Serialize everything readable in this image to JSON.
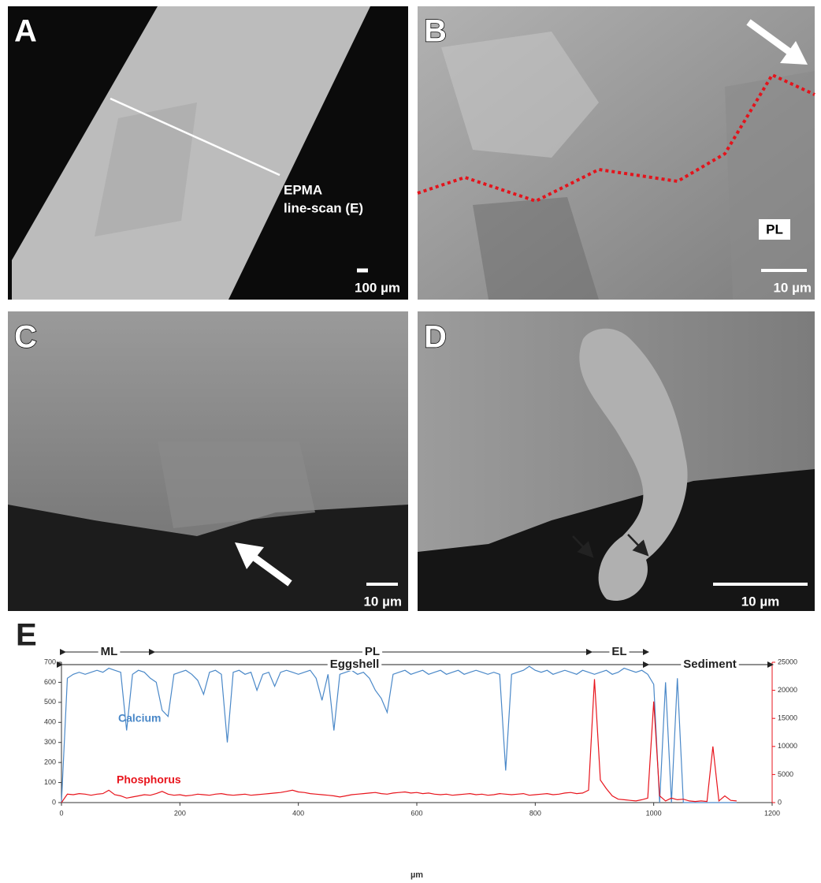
{
  "panels": [
    {
      "label": "A",
      "scale_bar": "100 µm",
      "annotation": [
        "EPMA",
        "line-scan (E)"
      ]
    },
    {
      "label": "B",
      "scale_bar": "10 µm",
      "annotation": [
        "PL"
      ]
    },
    {
      "label": "C",
      "scale_bar": "10 µm"
    },
    {
      "label": "D",
      "scale_bar": "10 µm"
    }
  ],
  "chart_data": {
    "type": "line",
    "label": "E",
    "x_label": "µm",
    "annotations": [
      "ML",
      "PL",
      "EL",
      "Eggshell",
      "Sediment"
    ],
    "x": [
      0,
      10,
      20,
      30,
      40,
      50,
      60,
      70,
      80,
      90,
      100,
      110,
      120,
      130,
      140,
      150,
      160,
      170,
      180,
      190,
      200,
      210,
      220,
      230,
      240,
      250,
      260,
      270,
      280,
      290,
      300,
      310,
      320,
      330,
      340,
      350,
      360,
      370,
      380,
      390,
      400,
      410,
      420,
      430,
      440,
      450,
      460,
      470,
      480,
      490,
      500,
      510,
      520,
      530,
      540,
      550,
      560,
      570,
      580,
      590,
      600,
      610,
      620,
      630,
      640,
      650,
      660,
      670,
      680,
      690,
      700,
      710,
      720,
      730,
      740,
      750,
      760,
      770,
      780,
      790,
      800,
      810,
      820,
      830,
      840,
      850,
      860,
      870,
      880,
      890,
      900,
      910,
      920,
      930,
      940,
      950,
      960,
      970,
      980,
      990,
      1000,
      1010,
      1020,
      1030,
      1040,
      1050,
      1060,
      1070,
      1080,
      1090,
      1100,
      1110,
      1120,
      1130,
      1140
    ],
    "series": [
      {
        "name": "Calcium",
        "color": "#4a88c8",
        "values": [
          0,
          620,
          640,
          650,
          640,
          650,
          660,
          650,
          670,
          660,
          650,
          360,
          640,
          660,
          650,
          620,
          600,
          460,
          430,
          640,
          650,
          660,
          640,
          610,
          540,
          650,
          660,
          640,
          300,
          650,
          660,
          640,
          650,
          560,
          640,
          650,
          580,
          650,
          660,
          650,
          640,
          650,
          660,
          620,
          510,
          640,
          360,
          640,
          650,
          660,
          640,
          650,
          620,
          560,
          520,
          450,
          640,
          650,
          660,
          640,
          650,
          660,
          640,
          650,
          660,
          640,
          650,
          660,
          640,
          650,
          660,
          650,
          640,
          650,
          640,
          160,
          640,
          650,
          660,
          680,
          660,
          650,
          660,
          640,
          650,
          660,
          650,
          640,
          660,
          650,
          640,
          650,
          660,
          640,
          650,
          670,
          660,
          650,
          660,
          640,
          590,
          0,
          600,
          0,
          620,
          0,
          0,
          0,
          0,
          0,
          0,
          0,
          0,
          0,
          0
        ]
      },
      {
        "name": "Phosphorus",
        "color": "#e8141c",
        "axis": "y2",
        "values": [
          0,
          1500,
          1400,
          1600,
          1500,
          1300,
          1500,
          1600,
          2200,
          1400,
          1200,
          800,
          1000,
          1200,
          1400,
          1300,
          1600,
          2000,
          1500,
          1300,
          1400,
          1200,
          1300,
          1500,
          1400,
          1300,
          1500,
          1600,
          1400,
          1300,
          1400,
          1500,
          1300,
          1400,
          1500,
          1600,
          1700,
          1800,
          2000,
          2200,
          1900,
          1800,
          1600,
          1500,
          1400,
          1300,
          1200,
          1000,
          1200,
          1400,
          1500,
          1600,
          1700,
          1800,
          1600,
          1500,
          1700,
          1800,
          1900,
          1700,
          1800,
          1600,
          1700,
          1500,
          1400,
          1500,
          1300,
          1400,
          1500,
          1600,
          1400,
          1500,
          1300,
          1400,
          1600,
          1500,
          1400,
          1500,
          1600,
          1300,
          1400,
          1500,
          1600,
          1400,
          1500,
          1700,
          1800,
          1600,
          1700,
          2200,
          22000,
          4000,
          2500,
          1200,
          600,
          500,
          400,
          300,
          500,
          800,
          18000,
          1200,
          300,
          800,
          500,
          600,
          300,
          200,
          300,
          200,
          10000,
          300,
          1200,
          400,
          300
        ]
      }
    ],
    "xlim": [
      0,
      1200
    ],
    "xticks": [
      0,
      200,
      400,
      600,
      800,
      1000,
      1200
    ],
    "ylim": [
      0,
      700
    ],
    "yticks": [
      0,
      100,
      200,
      300,
      400,
      500,
      600,
      700
    ],
    "y2lim": [
      0,
      25000
    ],
    "y2ticks": [
      0,
      5000,
      10000,
      15000,
      20000,
      25000
    ]
  }
}
